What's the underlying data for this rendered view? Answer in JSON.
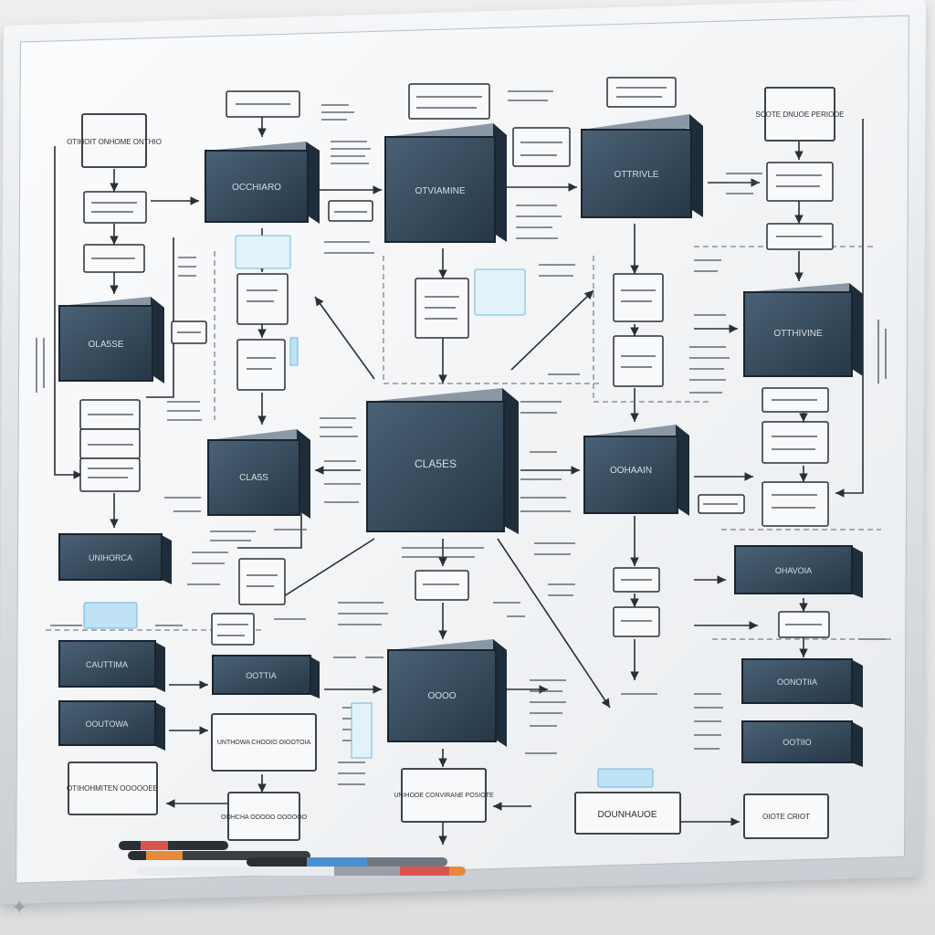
{
  "scene": {
    "description_free": true,
    "colors": {
      "board": "#f4f6f8",
      "frame": "#c9ced3",
      "box_fill": "#34495e",
      "box_side": "#1f2d3a",
      "ink": "#2b2f33",
      "accent_blue": "#6fb7e3"
    }
  },
  "big_boxes": [
    {
      "id": "b1",
      "label": "OCCHIARO"
    },
    {
      "id": "b2",
      "label": "OTVIAMINE"
    },
    {
      "id": "b3",
      "label": "OTTRIVLE"
    },
    {
      "id": "b4",
      "label": "OLA5SE"
    },
    {
      "id": "b5",
      "label": "OTTHIVINE"
    },
    {
      "id": "b6",
      "label": "CLA5S"
    },
    {
      "id": "b7",
      "label": "CLA5ES"
    },
    {
      "id": "b8",
      "label": "OOHAAIN"
    },
    {
      "id": "b9",
      "label": "OOOO"
    }
  ],
  "bar_boxes": [
    {
      "id": "r1",
      "label": "UNIHORCA"
    },
    {
      "id": "r2",
      "label": "CAUTTIMA"
    },
    {
      "id": "r3",
      "label": "OOUTOWA"
    },
    {
      "id": "r4",
      "label": "OOTTIA"
    },
    {
      "id": "r5",
      "label": "OHAVOIA"
    },
    {
      "id": "r6",
      "label": "OONOTIIA"
    },
    {
      "id": "r7",
      "label": "OOTIIO"
    }
  ],
  "small_boxes": [
    {
      "id": "s1",
      "label": "OTIHOIT ONHOME ONTHIO"
    },
    {
      "id": "s2",
      "label": "SCOTE DNUOE PERIODE"
    },
    {
      "id": "s3",
      "label": "DOUNHAUOE"
    },
    {
      "id": "s4",
      "label": "OTIHOHMITEN OOOOOEE"
    },
    {
      "id": "s5",
      "label": "UNIHOOE CONVIRANE POSIOTE"
    },
    {
      "id": "s6",
      "label": "OIOTE CRIOT"
    },
    {
      "id": "s7",
      "label": "UNTHOWA CHOOIO OIOOTOIA"
    },
    {
      "id": "s8",
      "label": "OOHCHA OOOOO OOOOOO"
    }
  ]
}
